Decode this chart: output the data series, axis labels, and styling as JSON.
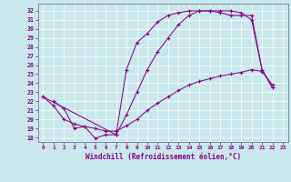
{
  "xlabel": "Windchill (Refroidissement éolien,°C)",
  "bg_color": "#c8e8ec",
  "line_color": "#880088",
  "grid_color": "#aaaacc",
  "xlim": [
    -0.5,
    23.5
  ],
  "ylim": [
    17.5,
    32.8
  ],
  "yticks": [
    18,
    19,
    20,
    21,
    22,
    23,
    24,
    25,
    26,
    27,
    28,
    29,
    30,
    31,
    32
  ],
  "xticks": [
    0,
    1,
    2,
    3,
    4,
    5,
    6,
    7,
    8,
    9,
    10,
    11,
    12,
    13,
    14,
    15,
    16,
    17,
    18,
    19,
    20,
    21,
    22,
    23
  ],
  "line1_x": [
    1,
    2,
    3,
    4,
    5,
    6,
    7,
    8,
    9,
    10,
    11,
    12,
    13,
    14,
    15,
    16,
    17,
    18,
    19,
    20,
    21,
    22
  ],
  "line1_y": [
    22.0,
    21.2,
    19.0,
    19.2,
    17.9,
    18.3,
    18.3,
    20.5,
    23.0,
    25.5,
    27.5,
    29.0,
    30.5,
    31.5,
    32.0,
    32.0,
    32.0,
    32.0,
    31.8,
    31.0,
    25.5,
    23.5
  ],
  "line2_x": [
    0,
    1,
    2,
    3,
    4,
    5,
    6,
    7,
    8,
    9,
    10,
    11,
    12,
    13,
    14,
    15,
    16,
    17,
    18,
    19,
    20,
    21,
    22
  ],
  "line2_y": [
    22.5,
    21.5,
    20.0,
    19.5,
    19.2,
    19.0,
    18.7,
    18.7,
    19.3,
    20.0,
    21.0,
    21.8,
    22.5,
    23.2,
    23.8,
    24.2,
    24.5,
    24.8,
    25.0,
    25.2,
    25.5,
    25.3,
    23.8
  ],
  "line3_x": [
    0,
    7,
    8,
    9,
    10,
    11,
    12,
    13,
    14,
    15,
    16,
    17,
    18,
    19,
    20,
    21,
    22
  ],
  "line3_y": [
    22.5,
    18.3,
    25.5,
    28.5,
    29.5,
    30.8,
    31.5,
    31.8,
    32.0,
    32.0,
    32.0,
    31.8,
    31.5,
    31.5,
    31.5,
    25.5,
    23.5
  ]
}
